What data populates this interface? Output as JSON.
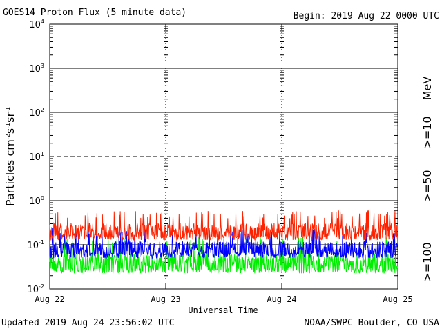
{
  "header": {
    "title": "GOES14 Proton Flux (5 minute data)",
    "begin": "Begin: 2019 Aug 22 0000 UTC"
  },
  "footer": {
    "updated": "Updated 2019 Aug 24 23:56:02 UTC",
    "credit": "NOAA/SWPC Boulder, CO USA"
  },
  "colors": {
    "ge10": "#ff2200",
    "ge50": "#0000ff",
    "ge100": "#00ee00",
    "axis": "#000000"
  },
  "chart_data": {
    "type": "line",
    "title": "GOES14 Proton Flux (5 minute data)",
    "xlabel": "Universal Time",
    "ylabel": "Particles cm-2 s-1 sr-1",
    "yscale": "log",
    "ylim": [
      0.01,
      10000
    ],
    "xlim": [
      0,
      3
    ],
    "categories": [
      "Aug 22",
      "Aug 23",
      "Aug 24",
      "Aug 25"
    ],
    "y_ticks": [
      {
        "base": "10",
        "exp": "-2",
        "value": 0.01
      },
      {
        "base": "10",
        "exp": "-1",
        "value": 0.1
      },
      {
        "base": "10",
        "exp": "0",
        "value": 1
      },
      {
        "base": "10",
        "exp": "1",
        "value": 10
      },
      {
        "base": "10",
        "exp": "2",
        "value": 100
      },
      {
        "base": "10",
        "exp": "3",
        "value": 1000
      },
      {
        "base": "10",
        "exp": "4",
        "value": 10000
      }
    ],
    "threshold_line": 10,
    "unit_label": "MeV",
    "series": [
      {
        "name": ">=10",
        "typical": 0.22,
        "low": 0.14,
        "high": 0.5
      },
      {
        "name": ">=50",
        "typical": 0.085,
        "low": 0.055,
        "high": 0.2
      },
      {
        "name": ">=100",
        "typical": 0.045,
        "low": 0.025,
        "high": 0.13
      }
    ]
  }
}
